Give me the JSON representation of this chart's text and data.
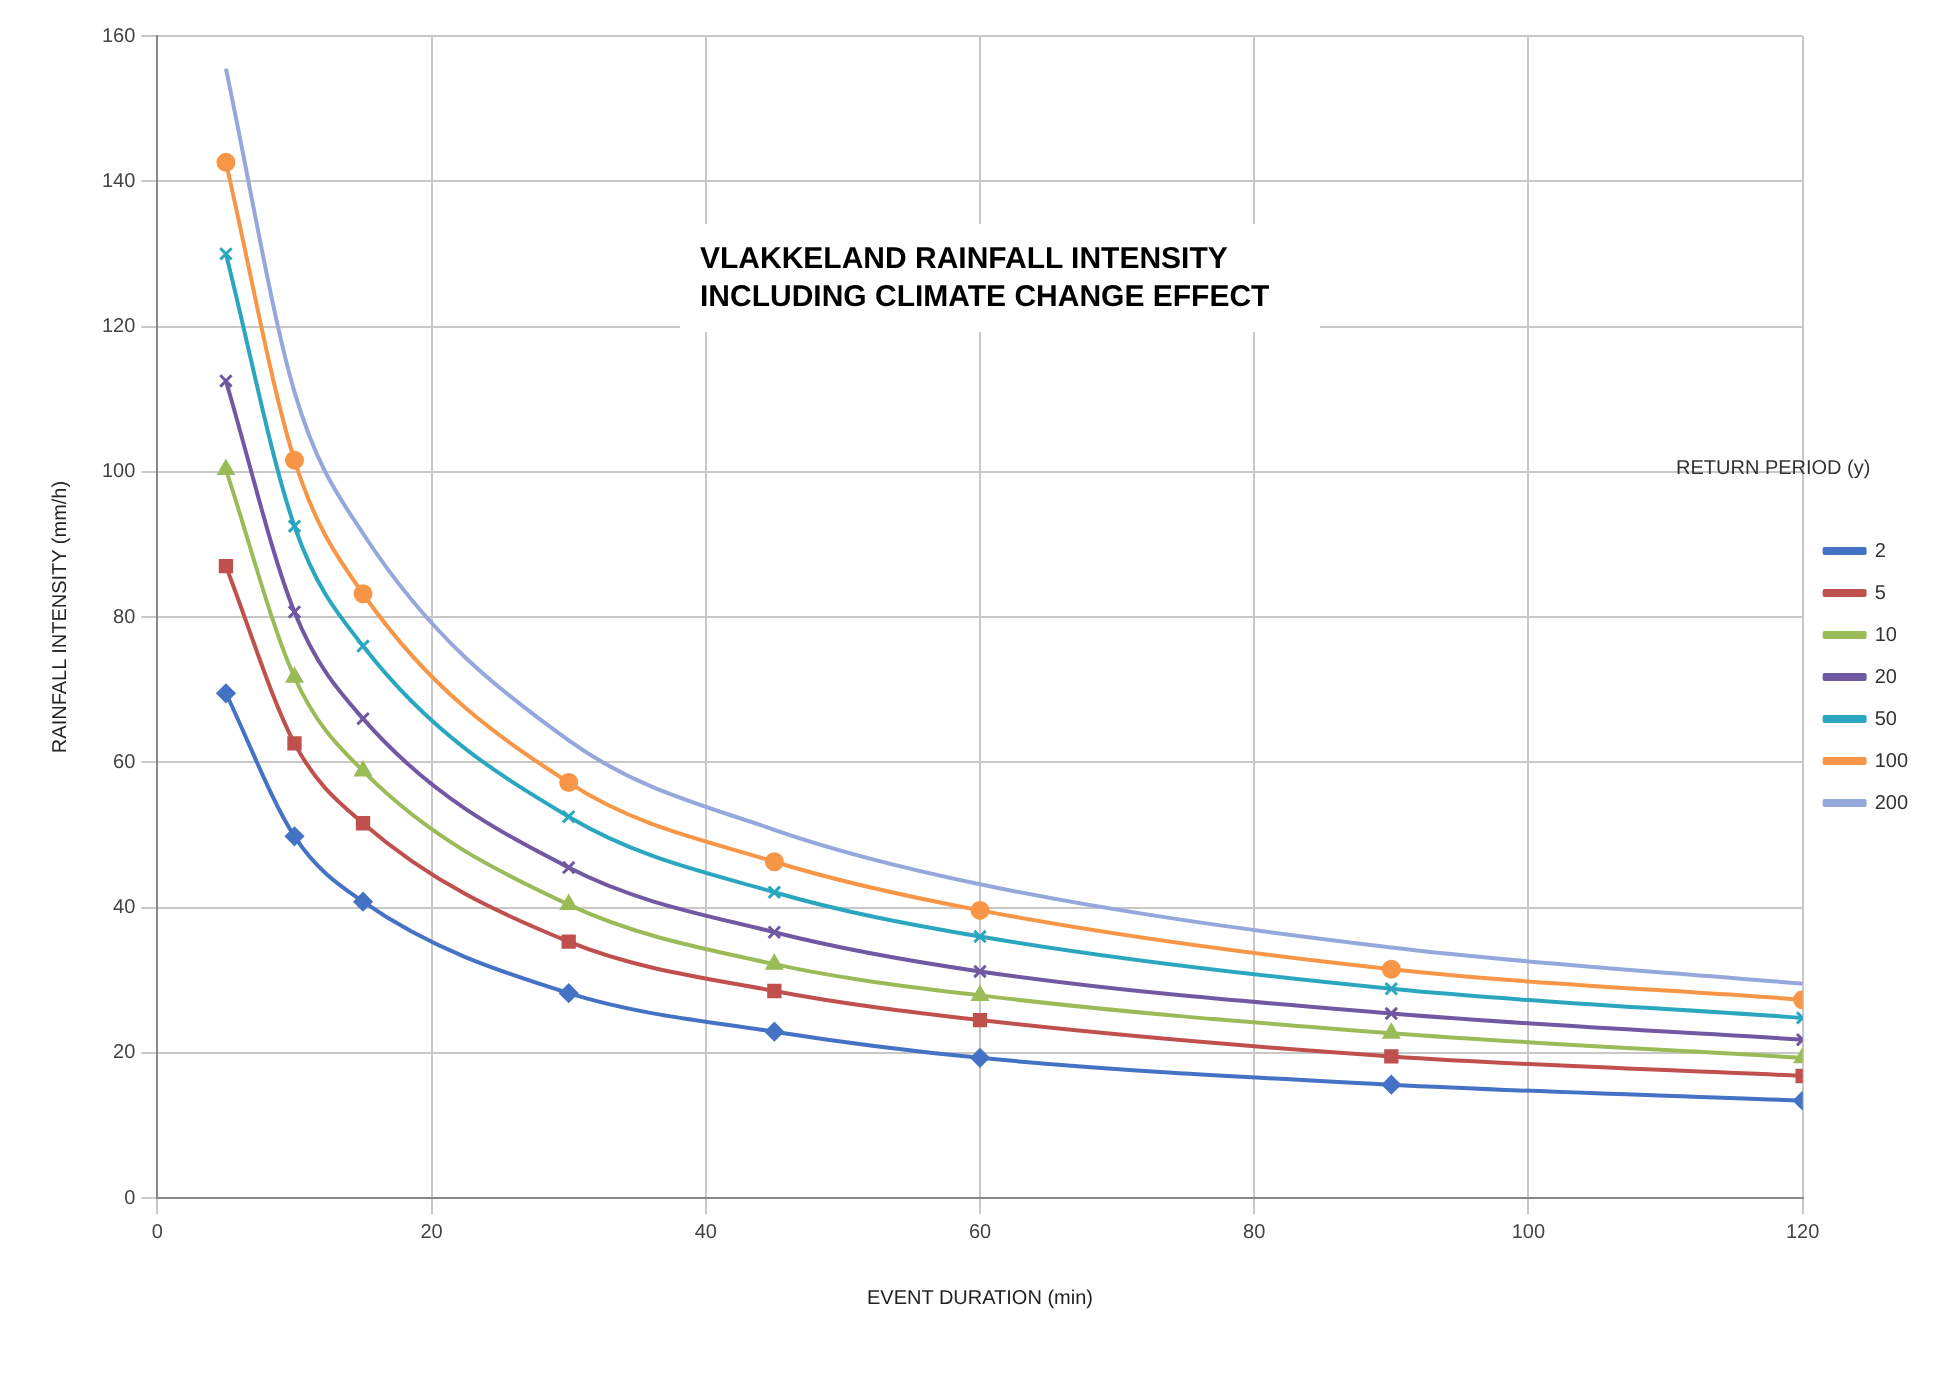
{
  "chart_data": {
    "type": "line",
    "title": "VLAKKELAND RAINFALL INTENSITY INCLUDING CLIMATE CHANGE EFFECT",
    "xlabel": "EVENT DURATION (min)",
    "ylabel": "RAINFALL INTENSITY (mm/h)",
    "legend_title": "RETURN PERIOD (y)",
    "x": [
      5,
      10,
      15,
      30,
      45,
      60,
      90,
      120
    ],
    "series": [
      {
        "name": "2",
        "color": "#4472c4",
        "marker": "diamond",
        "values": [
          69.5,
          49.8,
          40.8,
          28.2,
          22.9,
          19.3,
          15.6,
          13.4
        ]
      },
      {
        "name": "5",
        "color": "#c0504d",
        "marker": "square",
        "values": [
          87,
          62.6,
          51.6,
          35.3,
          28.5,
          24.5,
          19.5,
          16.8
        ]
      },
      {
        "name": "10",
        "color": "#9bbb59",
        "marker": "triangle",
        "values": [
          100.3,
          71.7,
          58.8,
          40.4,
          32.2,
          27.9,
          22.7,
          19.3
        ]
      },
      {
        "name": "20",
        "color": "#7058a3",
        "marker": "cross",
        "values": [
          112.5,
          80.7,
          66,
          45.5,
          36.6,
          31.2,
          25.4,
          21.8
        ]
      },
      {
        "name": "50",
        "color": "#2aa7bf",
        "marker": "cross",
        "values": [
          130,
          92.5,
          76,
          52.5,
          42.1,
          36,
          28.8,
          24.8
        ]
      },
      {
        "name": "100",
        "color": "#f79646",
        "marker": "circle",
        "values": [
          142.6,
          101.6,
          83.2,
          57.2,
          46.3,
          39.6,
          31.5,
          27.3
        ]
      },
      {
        "name": "200",
        "color": "#95a8dc",
        "marker": "none",
        "values": [
          155.5,
          111,
          91.5,
          63,
          50.7,
          43.2,
          34.5,
          29.5
        ]
      }
    ],
    "xlim": [
      0,
      120
    ],
    "xticks": [
      0,
      20,
      40,
      60,
      80,
      100,
      120
    ],
    "ylim": [
      0,
      160
    ],
    "yticks": [
      0,
      20,
      40,
      60,
      80,
      100,
      120,
      140,
      160
    ],
    "grid": true,
    "legend": "right",
    "line_style": "solid"
  }
}
